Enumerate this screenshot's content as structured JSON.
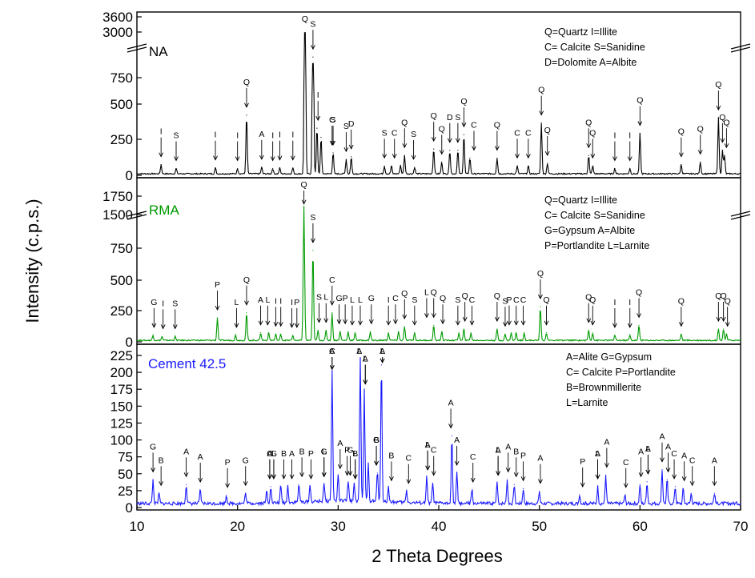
{
  "chart_data": {
    "type": "line",
    "xlabel": "2 Theta Degrees",
    "ylabel": "Intensity (c.p.s.)",
    "xlim": [
      10,
      70
    ],
    "x_ticks": [
      "10",
      "20",
      "30",
      "40",
      "50",
      "60",
      "70"
    ],
    "panels": [
      {
        "name": "NA",
        "color": "#000000",
        "y_ticks": [
          "0",
          "250",
          "500",
          "750",
          "3000",
          "3600"
        ],
        "legend": [
          "Q=Quartz   I=Illite",
          "C= Calcite  S=Sanidine",
          "D=Dolomite A=Albite"
        ],
        "series_peaks": [
          [
            12.4,
            70
          ],
          [
            13.9,
            40
          ],
          [
            17.8,
            45
          ],
          [
            20.0,
            40
          ],
          [
            20.9,
            450
          ],
          [
            22.4,
            50
          ],
          [
            23.5,
            40
          ],
          [
            24.2,
            45
          ],
          [
            25.5,
            45
          ],
          [
            26.7,
            3400
          ],
          [
            27.5,
            2000
          ],
          [
            27.9,
            350
          ],
          [
            28.3,
            280
          ],
          [
            29.5,
            160
          ],
          [
            30.8,
            110
          ],
          [
            31.3,
            130
          ],
          [
            34.6,
            60
          ],
          [
            35.3,
            60
          ],
          [
            36.2,
            65
          ],
          [
            36.6,
            140
          ],
          [
            37.6,
            50
          ],
          [
            39.5,
            190
          ],
          [
            40.3,
            90
          ],
          [
            41.1,
            180
          ],
          [
            41.9,
            180
          ],
          [
            42.5,
            300
          ],
          [
            43.1,
            120
          ],
          [
            45.8,
            120
          ],
          [
            47.8,
            60
          ],
          [
            48.9,
            60
          ],
          [
            50.2,
            390
          ],
          [
            50.8,
            80
          ],
          [
            54.9,
            140
          ],
          [
            55.3,
            60
          ],
          [
            57.5,
            40
          ],
          [
            59.0,
            40
          ],
          [
            60.0,
            310
          ],
          [
            64.1,
            70
          ],
          [
            66.0,
            90
          ],
          [
            67.8,
            430
          ],
          [
            68.2,
            180
          ],
          [
            68.4,
            140
          ]
        ],
        "labels": [
          [
            "I",
            12.4
          ],
          [
            "S",
            13.9
          ],
          [
            "I",
            17.8
          ],
          [
            "I",
            20.0
          ],
          [
            "Q",
            20.9
          ],
          [
            "A",
            22.4
          ],
          [
            "I",
            23.5
          ],
          [
            "I",
            24.2
          ],
          [
            "I",
            25.5
          ],
          [
            "Q",
            26.7
          ],
          [
            "S",
            27.5
          ],
          [
            "I",
            28.0
          ],
          [
            "S",
            29.5
          ],
          [
            "C",
            29.4
          ],
          [
            "S",
            30.8
          ],
          [
            "D",
            31.3
          ],
          [
            "S",
            34.6
          ],
          [
            "C",
            35.6
          ],
          [
            "Q",
            36.6
          ],
          [
            "S",
            37.5
          ],
          [
            "Q",
            39.5
          ],
          [
            "Q",
            40.3
          ],
          [
            "D",
            41.1
          ],
          [
            "S",
            41.9
          ],
          [
            "Q",
            42.5
          ],
          [
            "C",
            43.5
          ],
          [
            "Q",
            45.8
          ],
          [
            "C",
            47.8
          ],
          [
            "C",
            48.9
          ],
          [
            "Q",
            50.2
          ],
          [
            "Q",
            50.8
          ],
          [
            "Q",
            54.9
          ],
          [
            "Q",
            55.3
          ],
          [
            "I",
            57.5
          ],
          [
            "I",
            59.0
          ],
          [
            "Q",
            60.0
          ],
          [
            "Q",
            64.1
          ],
          [
            "Q",
            66.0
          ],
          [
            "Q",
            67.8
          ],
          [
            "Q",
            68.2
          ],
          [
            "Q",
            68.6
          ]
        ]
      },
      {
        "name": "RMA",
        "color": "#009a00",
        "y_ticks": [
          "0",
          "250",
          "500",
          "750",
          "1500",
          "1750"
        ],
        "legend": [
          "Q=Quartz   I=Illite",
          "C= Calcite  S=Sanidine",
          "G=Gypsum  A=Albite",
          "P=Portlandite  L=Larnite"
        ],
        "series_peaks": [
          [
            11.6,
            40
          ],
          [
            12.5,
            30
          ],
          [
            13.8,
            30
          ],
          [
            18.0,
            180
          ],
          [
            19.8,
            40
          ],
          [
            20.9,
            220
          ],
          [
            22.3,
            60
          ],
          [
            23.1,
            60
          ],
          [
            23.8,
            50
          ],
          [
            24.3,
            50
          ],
          [
            25.5,
            40
          ],
          [
            26.6,
            1600
          ],
          [
            27.5,
            720
          ],
          [
            28.0,
            80
          ],
          [
            28.8,
            80
          ],
          [
            29.4,
            220
          ],
          [
            30.2,
            70
          ],
          [
            31.0,
            70
          ],
          [
            31.7,
            60
          ],
          [
            33.2,
            70
          ],
          [
            35.0,
            60
          ],
          [
            36.0,
            70
          ],
          [
            36.6,
            110
          ],
          [
            37.6,
            60
          ],
          [
            39.5,
            120
          ],
          [
            40.3,
            70
          ],
          [
            42.0,
            60
          ],
          [
            42.5,
            90
          ],
          [
            43.2,
            60
          ],
          [
            45.8,
            90
          ],
          [
            46.6,
            50
          ],
          [
            47.2,
            60
          ],
          [
            47.7,
            60
          ],
          [
            48.5,
            60
          ],
          [
            50.1,
            270
          ],
          [
            50.7,
            60
          ],
          [
            54.9,
            80
          ],
          [
            55.3,
            60
          ],
          [
            57.5,
            40
          ],
          [
            59.0,
            40
          ],
          [
            59.9,
            120
          ],
          [
            64.1,
            50
          ],
          [
            67.8,
            90
          ],
          [
            68.3,
            90
          ],
          [
            68.6,
            50
          ]
        ],
        "labels": [
          [
            "G",
            11.7
          ],
          [
            "I",
            12.6
          ],
          [
            "S",
            13.8
          ],
          [
            "P",
            18.0
          ],
          [
            "L",
            19.9
          ],
          [
            "Q",
            20.9
          ],
          [
            "A",
            22.3
          ],
          [
            "L",
            23.0
          ],
          [
            "I",
            23.8
          ],
          [
            "I",
            24.3
          ],
          [
            "I",
            25.4
          ],
          [
            "P",
            25.9
          ],
          [
            "Q",
            26.6
          ],
          [
            "S",
            27.5
          ],
          [
            "S",
            28.1
          ],
          [
            "L",
            28.8
          ],
          [
            "C",
            29.4
          ],
          [
            "G",
            30.1
          ],
          [
            "P",
            30.7
          ],
          [
            "L",
            31.4
          ],
          [
            "L",
            32.2
          ],
          [
            "G",
            33.3
          ],
          [
            "I",
            35.0
          ],
          [
            "C",
            35.7
          ],
          [
            "Q",
            36.6
          ],
          [
            "S",
            37.6
          ],
          [
            "L",
            38.8
          ],
          [
            "Q",
            39.5
          ],
          [
            "Q",
            40.4
          ],
          [
            "S",
            41.9
          ],
          [
            "Q",
            42.6
          ],
          [
            "C",
            43.3
          ],
          [
            "Q",
            45.8
          ],
          [
            "S",
            46.6
          ],
          [
            "P",
            47.0
          ],
          [
            "C",
            47.7
          ],
          [
            "C",
            48.4
          ],
          [
            "Q",
            50.1
          ],
          [
            "Q",
            50.7
          ],
          [
            "Q",
            54.9
          ],
          [
            "Q",
            55.3
          ],
          [
            "I",
            57.5
          ],
          [
            "I",
            59.0
          ],
          [
            "Q",
            59.9
          ],
          [
            "Q",
            64.1
          ],
          [
            "Q",
            67.8
          ],
          [
            "Q",
            68.3
          ],
          [
            "Q",
            68.7
          ]
        ]
      },
      {
        "name": "Cement 42.5",
        "color": "#1a1aff",
        "y_ticks": [
          "0",
          "25",
          "50",
          "75",
          "100",
          "125",
          "150",
          "175",
          "200",
          "225"
        ],
        "legend": [
          "A=Alite        G=Gypsum",
          "C= Calcite   P=Portlandite",
          "B=Brownmillerite",
          "L=Larnite"
        ],
        "series_peaks": [
          [
            11.6,
            35
          ],
          [
            12.2,
            15
          ],
          [
            14.9,
            28
          ],
          [
            16.3,
            20
          ],
          [
            18.9,
            12
          ],
          [
            20.8,
            15
          ],
          [
            22.9,
            18
          ],
          [
            23.3,
            25
          ],
          [
            24.3,
            25
          ],
          [
            25.0,
            25
          ],
          [
            26.1,
            28
          ],
          [
            27.2,
            25
          ],
          [
            28.6,
            28
          ],
          [
            29.4,
            195
          ],
          [
            30.0,
            40
          ],
          [
            31.0,
            30
          ],
          [
            31.6,
            25
          ],
          [
            32.2,
            215
          ],
          [
            32.6,
            165
          ],
          [
            33.0,
            55
          ],
          [
            33.9,
            45
          ],
          [
            34.3,
            205
          ],
          [
            35.0,
            22
          ],
          [
            36.8,
            18
          ],
          [
            38.8,
            38
          ],
          [
            39.4,
            30
          ],
          [
            41.3,
            100
          ],
          [
            41.8,
            45
          ],
          [
            43.3,
            20
          ],
          [
            45.8,
            30
          ],
          [
            46.8,
            35
          ],
          [
            47.5,
            28
          ],
          [
            48.4,
            22
          ],
          [
            50.0,
            18
          ],
          [
            54.0,
            13
          ],
          [
            55.8,
            25
          ],
          [
            56.6,
            42
          ],
          [
            58.5,
            12
          ],
          [
            60.0,
            28
          ],
          [
            60.7,
            32
          ],
          [
            62.2,
            50
          ],
          [
            62.7,
            35
          ],
          [
            63.5,
            25
          ],
          [
            64.3,
            22
          ],
          [
            65.1,
            15
          ],
          [
            67.4,
            15
          ]
        ],
        "labels": [
          [
            "G",
            11.6
          ],
          [
            "B",
            12.4
          ],
          [
            "A",
            14.9
          ],
          [
            "A",
            16.3
          ],
          [
            "P",
            19.0
          ],
          [
            "G",
            20.8
          ],
          [
            "C",
            23.2
          ],
          [
            "A",
            23.2
          ],
          [
            "L",
            23.6
          ],
          [
            "G",
            23.6
          ],
          [
            "B",
            24.6
          ],
          [
            "A",
            25.4
          ],
          [
            "B",
            26.4
          ],
          [
            "P",
            27.3
          ],
          [
            "L",
            28.6
          ],
          [
            "G",
            28.6
          ],
          [
            "A",
            29.4
          ],
          [
            "C",
            29.4
          ],
          [
            "A",
            30.2
          ],
          [
            "P",
            30.9
          ],
          [
            "G",
            31.2
          ],
          [
            "L",
            31.7
          ],
          [
            "B",
            31.7
          ],
          [
            "L",
            32.1
          ],
          [
            "A",
            32.1
          ],
          [
            "L",
            32.7
          ],
          [
            "A",
            32.7
          ],
          [
            "B",
            33.8
          ],
          [
            "G",
            33.8
          ],
          [
            "L",
            34.4
          ],
          [
            "A",
            34.4
          ],
          [
            "B",
            35.3
          ],
          [
            "C",
            37.0
          ],
          [
            "L",
            38.9
          ],
          [
            "A",
            38.9
          ],
          [
            "C",
            39.5
          ],
          [
            "A",
            41.2
          ],
          [
            "A",
            41.8
          ],
          [
            "C",
            43.4
          ],
          [
            "L",
            45.9
          ],
          [
            "A",
            45.9
          ],
          [
            "A",
            46.9
          ],
          [
            "B",
            47.7
          ],
          [
            "P",
            48.4
          ],
          [
            "A",
            50.1
          ],
          [
            "P",
            54.3
          ],
          [
            "L",
            55.8
          ],
          [
            "A",
            55.8
          ],
          [
            "A",
            56.7
          ],
          [
            "C",
            58.6
          ],
          [
            "A",
            60.1
          ],
          [
            "L",
            60.8
          ],
          [
            "A",
            60.8
          ],
          [
            "A",
            62.2
          ],
          [
            "A",
            62.8
          ],
          [
            "C",
            63.4
          ],
          [
            "A",
            64.4
          ],
          [
            "C",
            65.2
          ],
          [
            "A",
            67.4
          ]
        ]
      }
    ]
  }
}
